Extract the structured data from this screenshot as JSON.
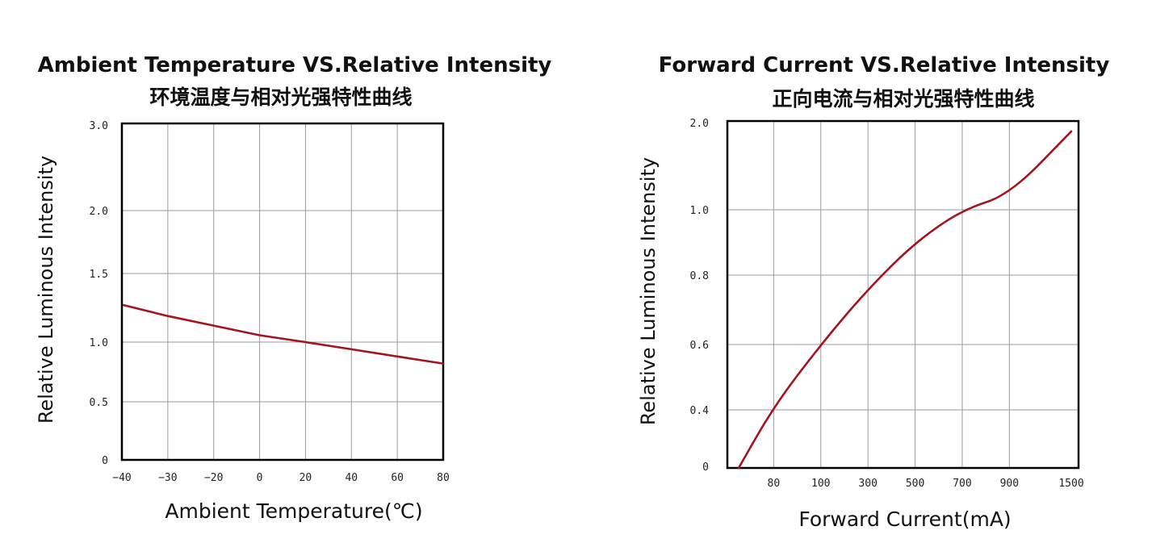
{
  "colors": {
    "series": "#a3141f",
    "grid": "#9a9a9a",
    "frame": "#000000"
  },
  "chart_data": [
    {
      "type": "line",
      "title": "Ambient Temperature VS.Relative Intensity",
      "subtitle": "环境温度与相对光强特性曲线",
      "xlabel": "Ambient Temperature(℃)",
      "ylabel": "Relative Luminous Intensity",
      "x_tick_labels": [
        "−40",
        "−30",
        "−20",
        "0",
        "20",
        "40",
        "60",
        "80"
      ],
      "y_tick_labels": [
        "0",
        "0.5",
        "1.0",
        "1.5",
        "2.0",
        "3.0"
      ],
      "grid": true,
      "series": [
        {
          "x": [
            "−40",
            "−30",
            "−20",
            "0",
            "20",
            "40",
            "60",
            "80"
          ],
          "y": [
            1.27,
            1.19,
            1.12,
            1.05,
            1.0,
            0.94,
            0.88,
            0.82
          ]
        }
      ]
    },
    {
      "type": "line",
      "title": "Forward Current VS.Relative Intensity",
      "subtitle": "正向电流与相对光强特性曲线",
      "xlabel": "Forward Current(mA)",
      "ylabel": "Relative Luminous Intensity",
      "x_tick_labels": [
        "80",
        "100",
        "300",
        "500",
        "700",
        "900",
        "1500"
      ],
      "y_tick_labels": [
        "0",
        "0.4",
        "0.6",
        "0.8",
        "1.0",
        "2.0"
      ],
      "grid": true,
      "series": [
        {
          "x": [
            "80",
            "100",
            "300",
            "500",
            "700",
            "900",
            "1500"
          ],
          "y": [
            0.41,
            0.6,
            0.76,
            0.9,
            1.0,
            1.17,
            1.9
          ]
        }
      ]
    }
  ]
}
